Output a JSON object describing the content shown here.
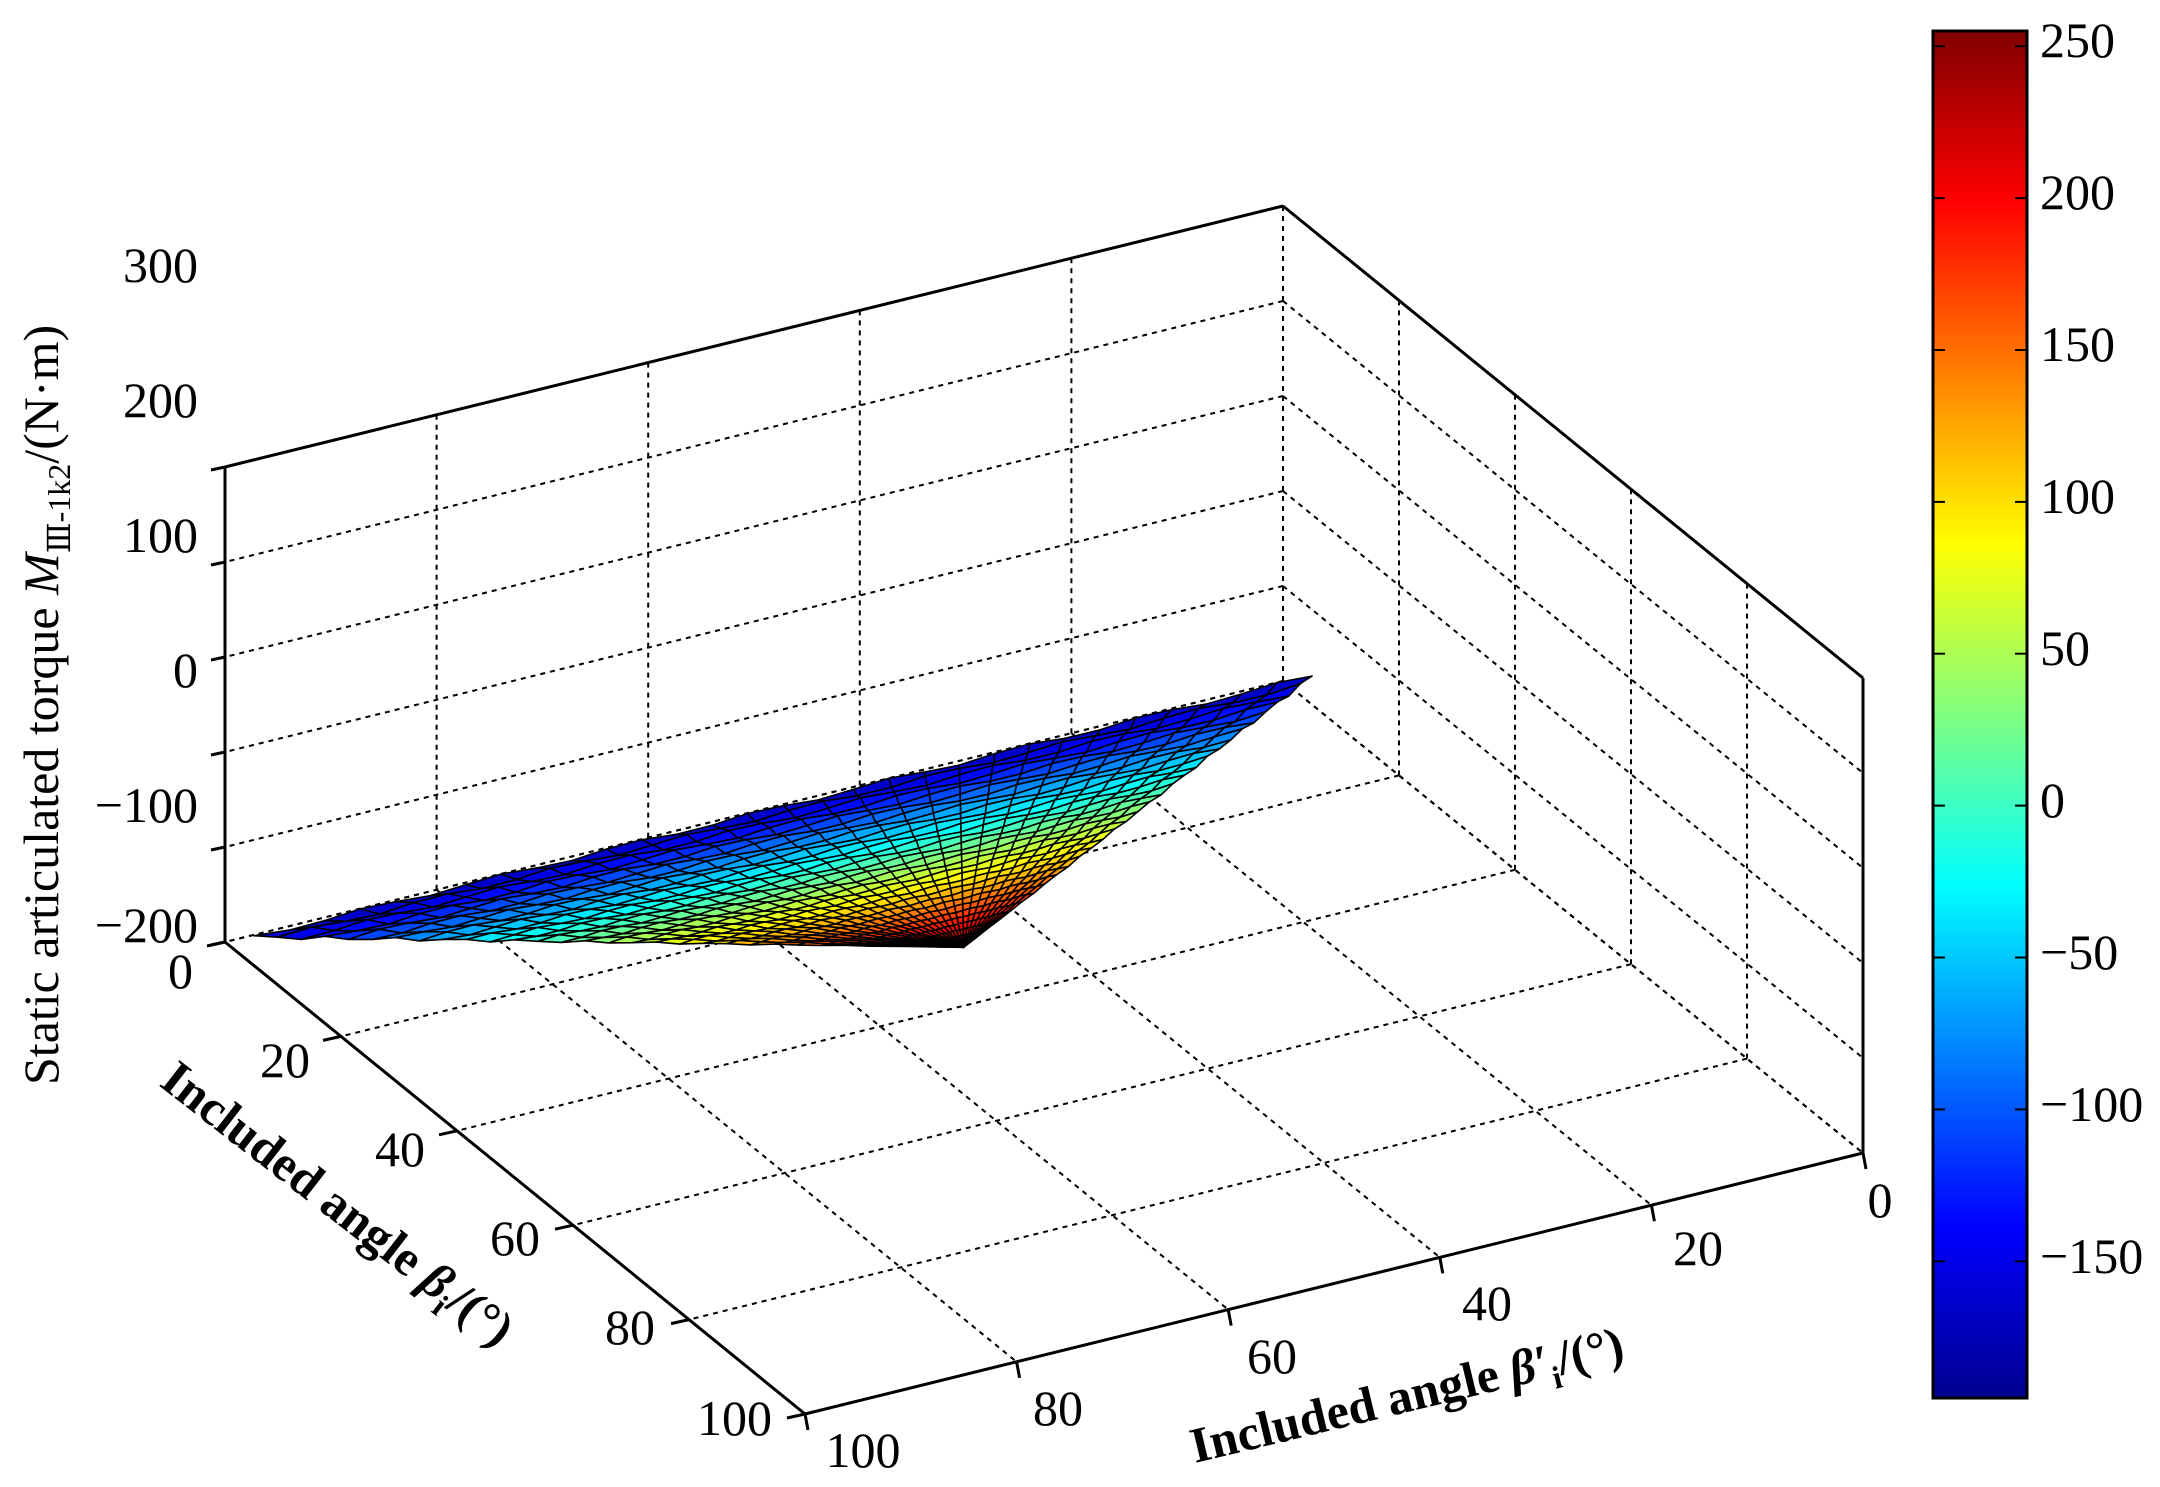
{
  "chart_data": {
    "type": "surface3d",
    "title": "",
    "zlabel": {
      "text": "Static articulated torque  ",
      "symbol": "M",
      "subscript": "Ⅲ-1k2",
      "unit": "/(N·m)"
    },
    "ylabel": {
      "text": "Included angle  ",
      "symbol": "β",
      "subscript": "i",
      "unit": "/(°)"
    },
    "xlabel": {
      "text": "Included angle  ",
      "symbol": "β′",
      "subscript": "i",
      "unit": "/(°)"
    },
    "z_ticks": [
      "300",
      "200",
      "100",
      "0",
      "−100",
      "−200"
    ],
    "y_ticks": [
      "0",
      "20",
      "40",
      "60",
      "80",
      "100"
    ],
    "x_ticks": [
      "0",
      "20",
      "40",
      "60",
      "80",
      "100"
    ],
    "zlim": [
      -200,
      300
    ],
    "ylim": [
      0,
      100
    ],
    "xlim": [
      0,
      100
    ],
    "grid": true,
    "surface": {
      "region": "triangular: β′ from 0 to 100 at β ≈ 5, narrowing to a peak near β ≈ 100, β′ ≈ 85",
      "corners": [
        {
          "beta": 5,
          "beta_prime": 0,
          "z": -170
        },
        {
          "beta": 5,
          "beta_prime": 100,
          "z": -170
        },
        {
          "beta": 100,
          "beta_prime": 85,
          "z": 250
        }
      ],
      "z_range": [
        -190,
        250
      ]
    },
    "colorbar": {
      "colormap": "jet",
      "range": [
        -195,
        255
      ],
      "ticks": [
        "250",
        "200",
        "150",
        "100",
        "50",
        "0",
        "−50",
        "−100",
        "−150"
      ]
    }
  }
}
